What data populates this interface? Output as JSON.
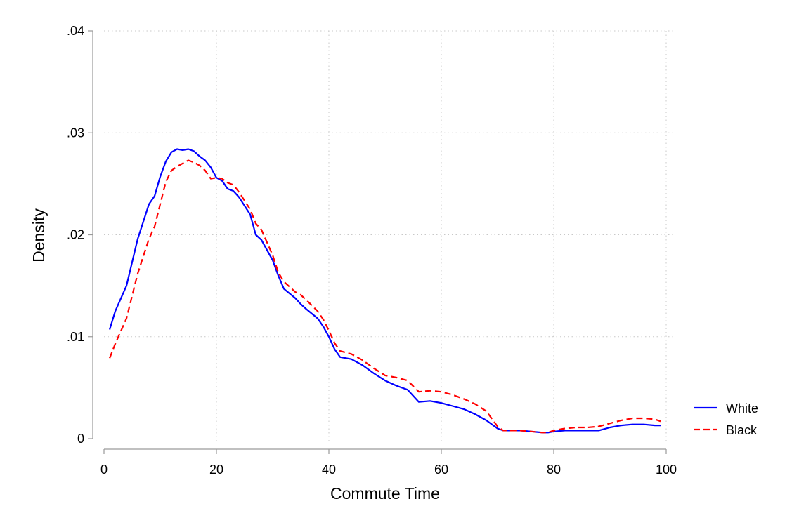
{
  "chart_data": {
    "type": "line",
    "title": "",
    "xlabel": "Commute Time",
    "ylabel": "Density",
    "xlim": [
      0,
      100
    ],
    "ylim": [
      0,
      0.04
    ],
    "xticks": [
      {
        "value": 0,
        "label": "0"
      },
      {
        "value": 20,
        "label": "20"
      },
      {
        "value": 40,
        "label": "40"
      },
      {
        "value": 60,
        "label": "60"
      },
      {
        "value": 80,
        "label": "80"
      },
      {
        "value": 100,
        "label": "100"
      }
    ],
    "yticks": [
      {
        "value": 0,
        "label": "0"
      },
      {
        "value": 0.01,
        "label": ".01"
      },
      {
        "value": 0.02,
        "label": ".02"
      },
      {
        "value": 0.03,
        "label": ".03"
      },
      {
        "value": 0.04,
        "label": ".04"
      }
    ],
    "grid": true,
    "legend_position": "right",
    "series": [
      {
        "name": "White",
        "color": "#0000ff",
        "dash": "solid",
        "x": [
          1,
          2,
          4,
          6,
          8,
          9,
          10,
          11,
          12,
          13,
          14,
          15,
          16,
          17,
          18,
          19,
          20,
          21,
          22,
          23,
          24,
          26,
          27,
          28,
          30,
          31,
          32,
          34,
          35,
          36,
          38,
          39,
          40,
          41,
          42,
          44,
          46,
          48,
          50,
          52,
          54,
          56,
          58,
          60,
          62,
          64,
          66,
          68,
          70,
          71,
          72,
          74,
          76,
          78,
          79,
          80,
          82,
          84,
          86,
          88,
          90,
          92,
          94,
          96,
          98,
          99
        ],
        "y": [
          0.0107,
          0.0125,
          0.015,
          0.0196,
          0.023,
          0.0238,
          0.0257,
          0.0272,
          0.0281,
          0.0284,
          0.0283,
          0.0284,
          0.0282,
          0.0277,
          0.0273,
          0.0266,
          0.0256,
          0.0253,
          0.0245,
          0.0243,
          0.0237,
          0.022,
          0.02,
          0.0195,
          0.0175,
          0.016,
          0.0147,
          0.0138,
          0.0132,
          0.0127,
          0.0118,
          0.011,
          0.01,
          0.0088,
          0.008,
          0.0078,
          0.0072,
          0.0064,
          0.0057,
          0.0052,
          0.0048,
          0.0036,
          0.0037,
          0.0035,
          0.0032,
          0.0029,
          0.0024,
          0.0018,
          0.001,
          0.0008,
          0.0008,
          0.0008,
          0.0007,
          0.0006,
          0.0006,
          0.0007,
          0.0008,
          0.0008,
          0.0008,
          0.0008,
          0.0011,
          0.0013,
          0.0014,
          0.0014,
          0.0013,
          0.0013
        ]
      },
      {
        "name": "Black",
        "color": "#ff0000",
        "dash": "dashed",
        "x": [
          1,
          2,
          4,
          6,
          8,
          9,
          10,
          11,
          12,
          13,
          14,
          15,
          16,
          17,
          18,
          19,
          20,
          21,
          22,
          23,
          24,
          26,
          27,
          28,
          30,
          31,
          32,
          34,
          35,
          36,
          38,
          39,
          40,
          41,
          42,
          44,
          46,
          48,
          50,
          52,
          54,
          56,
          58,
          60,
          62,
          64,
          66,
          68,
          70,
          71,
          72,
          74,
          76,
          78,
          79,
          80,
          82,
          84,
          86,
          88,
          90,
          92,
          94,
          96,
          98,
          99
        ],
        "y": [
          0.0079,
          0.0093,
          0.0118,
          0.0162,
          0.0196,
          0.0208,
          0.023,
          0.0252,
          0.0263,
          0.0267,
          0.027,
          0.0273,
          0.0271,
          0.0268,
          0.0263,
          0.0255,
          0.0256,
          0.0255,
          0.0251,
          0.0249,
          0.0242,
          0.0225,
          0.0211,
          0.0205,
          0.018,
          0.0163,
          0.0154,
          0.0144,
          0.0141,
          0.0136,
          0.0125,
          0.0117,
          0.0106,
          0.0094,
          0.0086,
          0.0083,
          0.0077,
          0.0069,
          0.0062,
          0.006,
          0.0057,
          0.0046,
          0.0047,
          0.0046,
          0.0043,
          0.0039,
          0.0034,
          0.0027,
          0.0012,
          0.0008,
          0.0008,
          0.0008,
          0.0007,
          0.0006,
          0.0006,
          0.0008,
          0.001,
          0.0011,
          0.0011,
          0.0012,
          0.0015,
          0.0018,
          0.002,
          0.002,
          0.0019,
          0.0017
        ]
      }
    ]
  }
}
